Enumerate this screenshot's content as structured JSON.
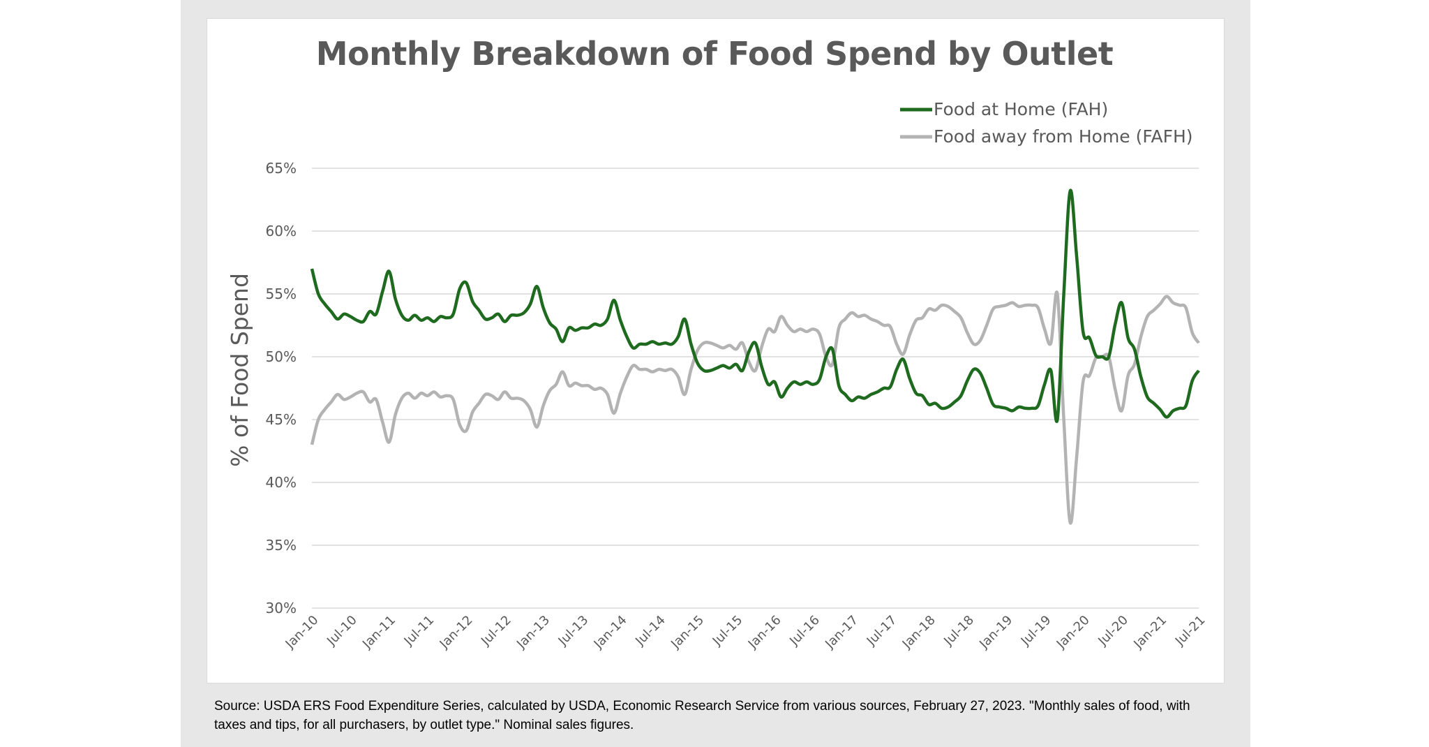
{
  "colors": {
    "fah": "#1e6a1e",
    "fafh": "#b3b3b3",
    "grid": "#d9d9d9",
    "axis_text": "#595959",
    "title": "#595959"
  },
  "chart_data": {
    "type": "line",
    "title": "Monthly Breakdown of Food Spend by Outlet",
    "xlabel": "",
    "ylabel": "% of Food Spend",
    "ylim": [
      30,
      65
    ],
    "y_ticks": [
      "30%",
      "35%",
      "40%",
      "45%",
      "50%",
      "55%",
      "60%",
      "65%"
    ],
    "x_tick_labels": [
      "Jan-10",
      "Jul-10",
      "Jan-11",
      "Jul-11",
      "Jan-12",
      "Jul-12",
      "Jan-13",
      "Jul-13",
      "Jan-14",
      "Jul-14",
      "Jan-15",
      "Jul-15",
      "Jan-16",
      "Jul-16",
      "Jan-17",
      "Jul-17",
      "Jan-18",
      "Jul-18",
      "Jan-19",
      "Jul-19",
      "Jan-20",
      "Jul-20",
      "Jan-21",
      "Jul-21"
    ],
    "x_tick_step_months": 6,
    "legend_position": "top-right",
    "series": [
      {
        "name": "Food at Home (FAH)",
        "color_key": "fah",
        "values": [
          57.0,
          55.0,
          54.2,
          53.6,
          53.0,
          53.4,
          53.2,
          52.9,
          52.8,
          53.6,
          53.4,
          55.2,
          56.8,
          54.6,
          53.3,
          52.9,
          53.3,
          52.9,
          53.1,
          52.8,
          53.2,
          53.1,
          53.4,
          55.4,
          55.9,
          54.4,
          53.7,
          53.0,
          53.1,
          53.4,
          52.8,
          53.3,
          53.3,
          53.5,
          54.2,
          55.6,
          53.9,
          52.7,
          52.2,
          51.2,
          52.3,
          52.1,
          52.3,
          52.3,
          52.6,
          52.5,
          53.0,
          54.5,
          52.9,
          51.6,
          50.7,
          51.0,
          51.0,
          51.2,
          51.0,
          51.1,
          51.0,
          51.6,
          53.0,
          51.0,
          49.5,
          48.9,
          48.9,
          49.1,
          49.3,
          49.1,
          49.4,
          48.9,
          50.4,
          51.1,
          49.2,
          47.8,
          48.0,
          46.8,
          47.5,
          48.0,
          47.8,
          48.0,
          47.8,
          48.2,
          50.0,
          50.6,
          47.7,
          47.0,
          46.5,
          46.8,
          46.7,
          47.0,
          47.2,
          47.5,
          47.6,
          49.0,
          49.8,
          48.3,
          47.1,
          46.9,
          46.2,
          46.3,
          45.9,
          46.0,
          46.4,
          46.9,
          48.1,
          49.0,
          48.7,
          47.5,
          46.2,
          46.0,
          45.9,
          45.7,
          46.0,
          45.9,
          45.9,
          46.1,
          47.8,
          48.9,
          45.0,
          55.0,
          63.2,
          58.0,
          52.0,
          51.5,
          50.1,
          50.0,
          50.0,
          52.6,
          54.3,
          51.5,
          50.6,
          48.4,
          46.8,
          46.3,
          45.8,
          45.2,
          45.7,
          45.9,
          46.1,
          48.1,
          48.9
        ]
      },
      {
        "name": "Food away from Home (FAFH)",
        "color_key": "fafh",
        "values": [
          43.0,
          45.0,
          45.8,
          46.4,
          47.0,
          46.6,
          46.8,
          47.1,
          47.2,
          46.4,
          46.6,
          44.8,
          43.2,
          45.4,
          46.7,
          47.1,
          46.7,
          47.1,
          46.9,
          47.2,
          46.8,
          46.9,
          46.6,
          44.6,
          44.1,
          45.6,
          46.3,
          47.0,
          46.9,
          46.6,
          47.2,
          46.7,
          46.7,
          46.5,
          45.8,
          44.4,
          46.1,
          47.3,
          47.8,
          48.8,
          47.7,
          47.9,
          47.7,
          47.7,
          47.4,
          47.5,
          47.0,
          45.5,
          47.1,
          48.4,
          49.3,
          49.0,
          49.0,
          48.8,
          49.0,
          48.9,
          49.0,
          48.4,
          47.0,
          49.0,
          50.5,
          51.1,
          51.1,
          50.9,
          50.7,
          50.9,
          50.6,
          51.1,
          49.6,
          48.9,
          50.8,
          52.2,
          52.0,
          53.2,
          52.5,
          52.0,
          52.2,
          52.0,
          52.2,
          51.8,
          50.0,
          49.4,
          52.3,
          53.0,
          53.5,
          53.2,
          53.3,
          53.0,
          52.8,
          52.5,
          52.4,
          51.0,
          50.2,
          51.7,
          52.9,
          53.1,
          53.8,
          53.7,
          54.1,
          54.0,
          53.6,
          53.1,
          51.9,
          51.0,
          51.3,
          52.5,
          53.8,
          54.0,
          54.1,
          54.3,
          54.0,
          54.1,
          54.1,
          53.9,
          52.2,
          51.1,
          55.0,
          45.0,
          36.8,
          42.0,
          48.0,
          48.5,
          49.9,
          50.0,
          50.0,
          47.4,
          45.7,
          48.5,
          49.4,
          51.6,
          53.2,
          53.7,
          54.2,
          54.8,
          54.3,
          54.1,
          53.9,
          51.9,
          51.1
        ]
      }
    ]
  },
  "source_note": "Source: USDA ERS Food Expenditure Series, calculated by USDA, Economic Research Service from various sources, February 27, 2023. \"Monthly sales of food, with taxes and tips, for all purchasers, by outlet type.\" Nominal sales figures."
}
